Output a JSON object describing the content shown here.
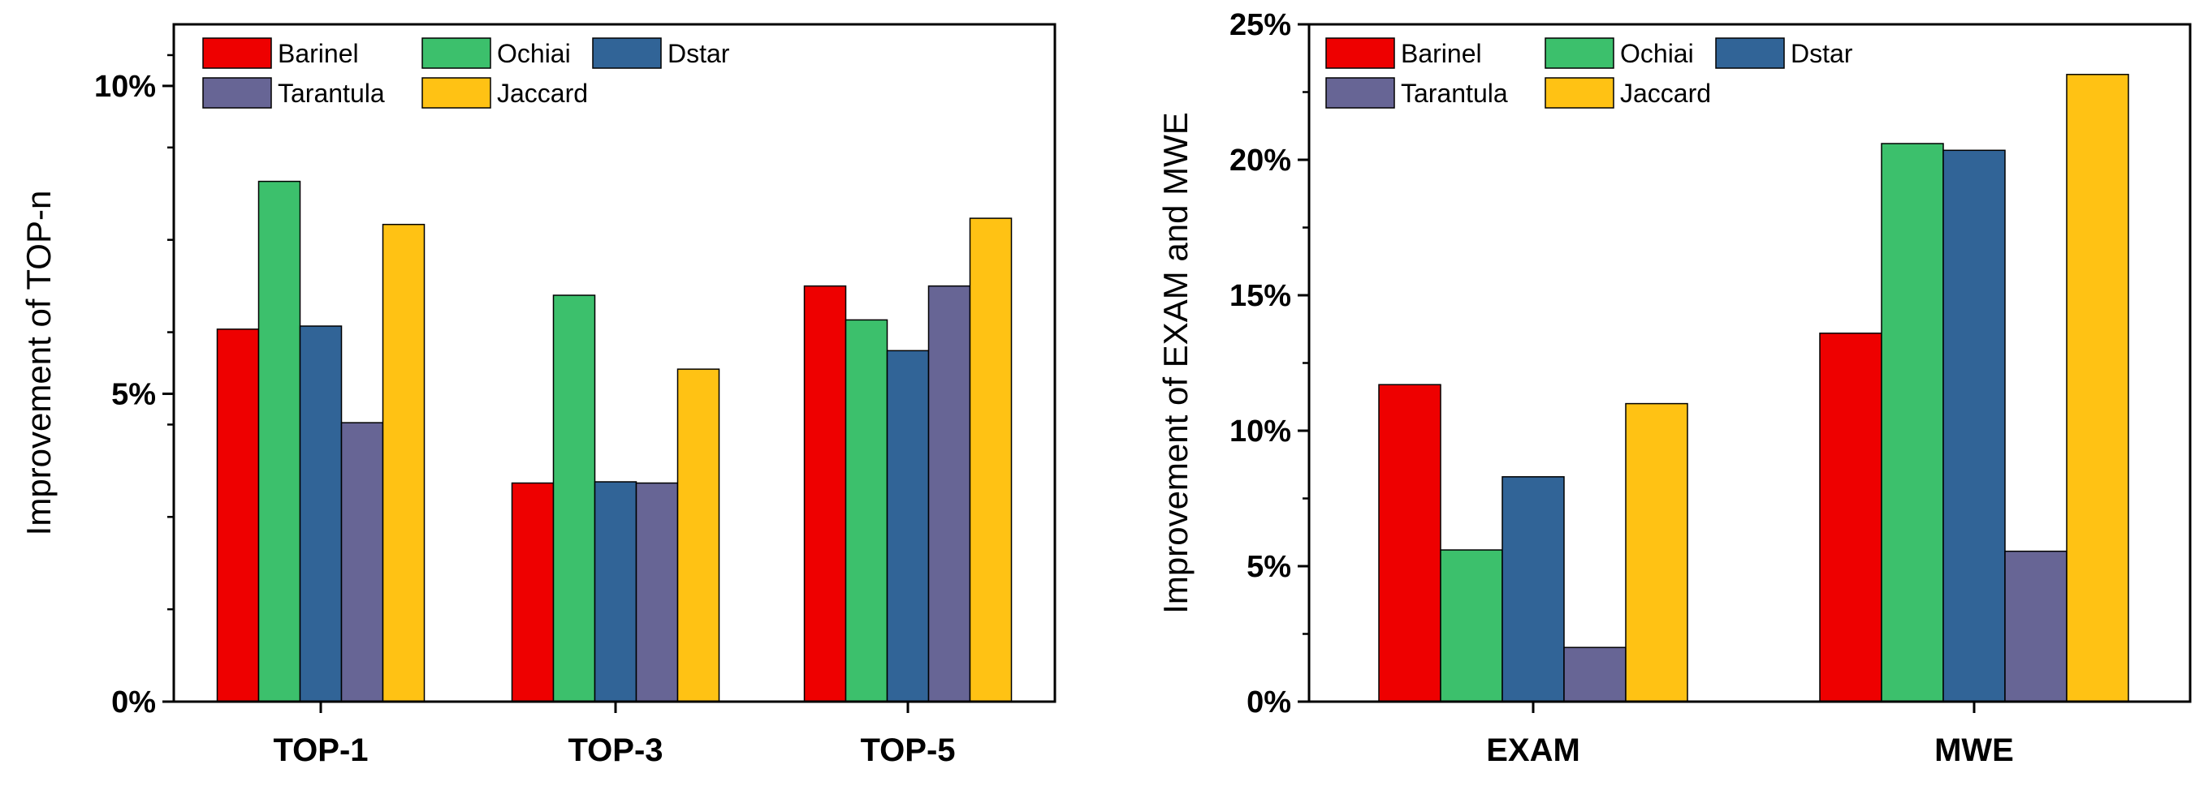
{
  "colors": {
    "Barinel": "#ee0000",
    "Ochiai": "#3cc06c",
    "Dstar": "#316497",
    "Tarantula": "#676595",
    "Jaccard": "#ffc214"
  },
  "chart_data": [
    {
      "type": "bar",
      "title": "",
      "xlabel": "",
      "ylabel": "Improvement of TOP-n",
      "ylim": [
        0,
        11
      ],
      "yticks": [
        0,
        5,
        10
      ],
      "ytick_labels": [
        "0%",
        "5%",
        "10%"
      ],
      "minor_step": 1.5,
      "categories": [
        "TOP-1",
        "TOP-3",
        "TOP-5"
      ],
      "legend_position": "top-left",
      "legend_rows": [
        [
          "Barinel",
          "Ochiai",
          "Dstar"
        ],
        [
          "Tarantula",
          "Jaccard"
        ]
      ],
      "series": [
        {
          "name": "Barinel",
          "values": [
            6.05,
            3.55,
            6.75
          ]
        },
        {
          "name": "Ochiai",
          "values": [
            8.45,
            6.6,
            6.2
          ]
        },
        {
          "name": "Dstar",
          "values": [
            6.1,
            3.57,
            5.7
          ]
        },
        {
          "name": "Tarantula",
          "values": [
            4.53,
            3.55,
            6.75
          ]
        },
        {
          "name": "Jaccard",
          "values": [
            7.75,
            5.4,
            7.85
          ]
        }
      ]
    },
    {
      "type": "bar",
      "title": "",
      "xlabel": "",
      "ylabel": "Improvement of EXAM and MWE",
      "ylim": [
        0,
        25
      ],
      "yticks": [
        0,
        5,
        10,
        15,
        20,
        25
      ],
      "ytick_labels": [
        "0%",
        "5%",
        "10%",
        "15%",
        "20%",
        "25%"
      ],
      "minor_step": 2.5,
      "categories": [
        "EXAM",
        "MWE"
      ],
      "legend_position": "top-left",
      "legend_rows": [
        [
          "Barinel",
          "Ochiai",
          "Dstar"
        ],
        [
          "Tarantula",
          "Jaccard"
        ]
      ],
      "series": [
        {
          "name": "Barinel",
          "values": [
            11.7,
            13.6
          ]
        },
        {
          "name": "Ochiai",
          "values": [
            5.6,
            20.6
          ]
        },
        {
          "name": "Dstar",
          "values": [
            8.3,
            20.35
          ]
        },
        {
          "name": "Tarantula",
          "values": [
            2.0,
            5.55
          ]
        },
        {
          "name": "Jaccard",
          "values": [
            11.0,
            23.15
          ]
        }
      ]
    }
  ]
}
